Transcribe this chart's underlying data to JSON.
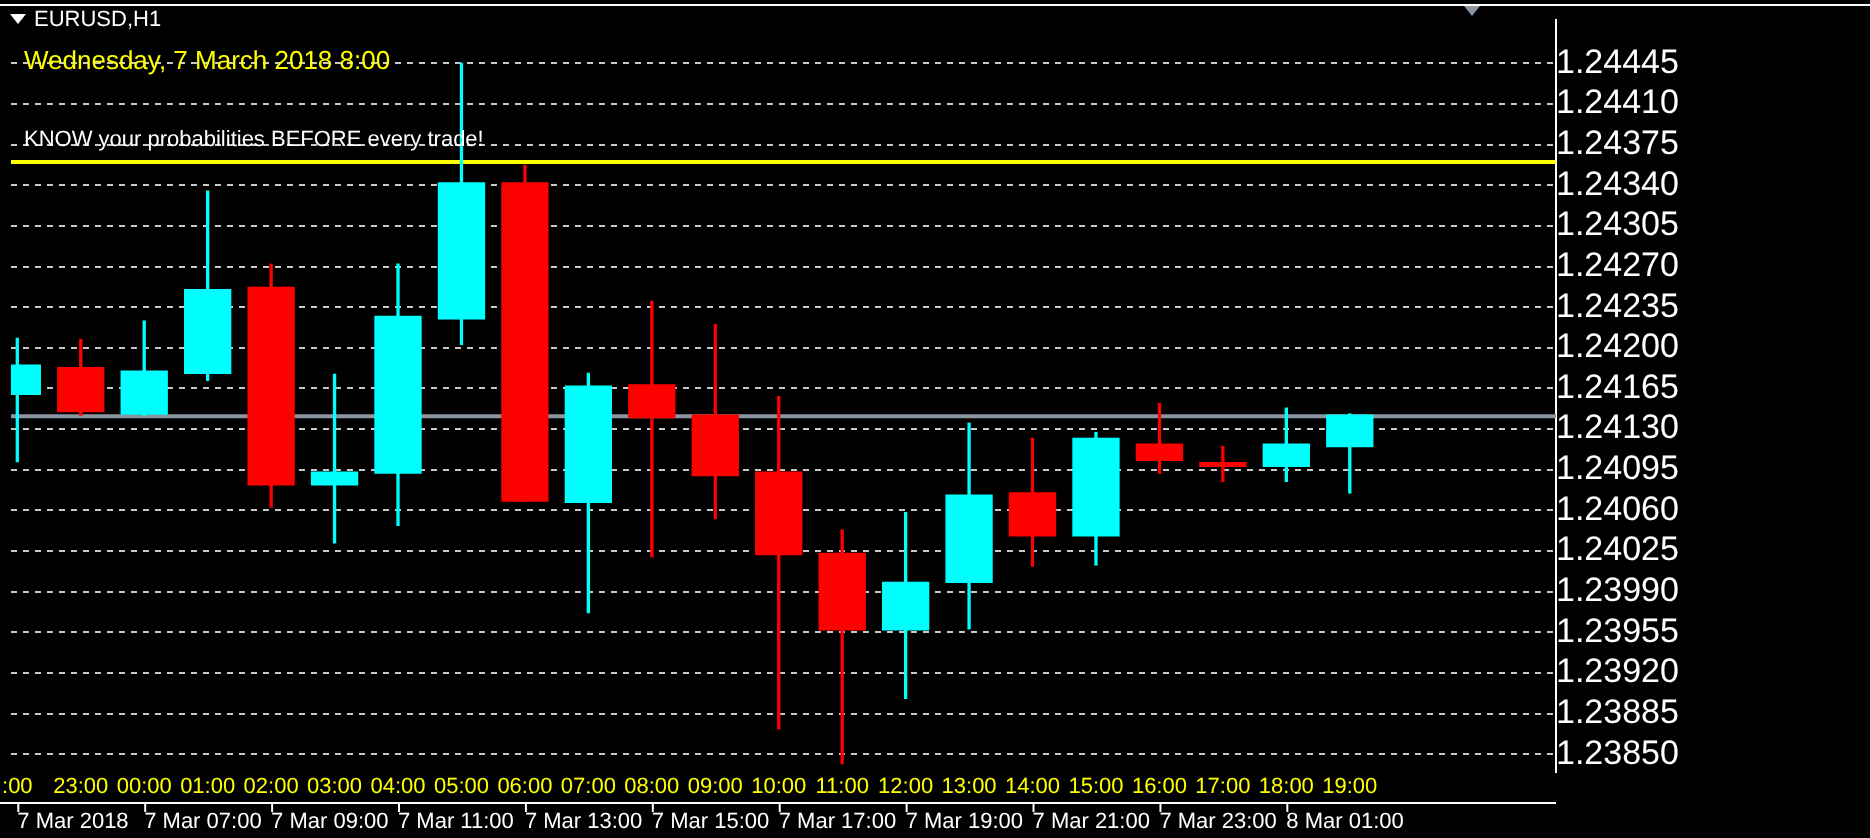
{
  "chart_data": {
    "type": "candlestick",
    "title": "EURUSD,H1",
    "categories": [
      ":00",
      "23:00",
      "00:00",
      "01:00",
      "02:00",
      "03:00",
      "04:00",
      "05:00",
      "06:00",
      "07:00",
      "08:00",
      "09:00",
      "10:00",
      "11:00",
      "12:00",
      "13:00",
      "14:00",
      "15:00",
      "16:00",
      "17:00",
      "18:00",
      "19:00"
    ],
    "ohlc": [
      [
        1.2416,
        1.24208,
        1.24102,
        1.24185
      ],
      [
        1.24183,
        1.24207,
        1.24142,
        1.24145
      ],
      [
        1.24143,
        1.24223,
        1.24142,
        1.2418
      ],
      [
        1.24178,
        1.24335,
        1.24172,
        1.2425
      ],
      [
        1.24252,
        1.24272,
        1.24063,
        1.24082
      ],
      [
        1.24082,
        1.24177,
        1.24032,
        1.24093
      ],
      [
        1.24092,
        1.24272,
        1.24047,
        1.24227
      ],
      [
        1.24225,
        1.24445,
        1.24203,
        1.24342
      ],
      [
        1.24342,
        1.24357,
        1.24068,
        1.24068
      ],
      [
        1.24067,
        1.24178,
        1.23972,
        1.24167
      ],
      [
        1.24168,
        1.2424,
        1.2402,
        1.2414
      ],
      [
        1.24142,
        1.2422,
        1.24053,
        1.2409
      ],
      [
        1.24093,
        1.24158,
        1.23872,
        1.24022
      ],
      [
        1.24023,
        1.24043,
        1.23842,
        1.23957
      ],
      [
        1.23957,
        1.24058,
        1.23898,
        1.23998
      ],
      [
        1.23998,
        1.24135,
        1.23958,
        1.24073
      ],
      [
        1.24075,
        1.24122,
        1.24012,
        1.24038
      ],
      [
        1.24038,
        1.24127,
        1.24013,
        1.24122
      ],
      [
        1.24117,
        1.24152,
        1.24092,
        1.24103
      ],
      [
        1.24101,
        1.24115,
        1.24085,
        1.24098
      ],
      [
        1.24098,
        1.24148,
        1.24085,
        1.24117
      ],
      [
        1.24115,
        1.24143,
        1.24075,
        1.24142
      ]
    ],
    "colors": [
      "#00ffff",
      "#ff0000",
      "#00ffff",
      "#00ffff",
      "#ff0000",
      "#00ffff",
      "#00ffff",
      "#00ffff",
      "#ff0000",
      "#00ffff",
      "#ff0000",
      "#ff0000",
      "#ff0000",
      "#ff0000",
      "#00ffff",
      "#00ffff",
      "#ff0000",
      "#00ffff",
      "#ff0000",
      "#ff0000",
      "#00ffff",
      "#00ffff"
    ],
    "ylim": [
      1.23835,
      1.24482
    ],
    "yticks": [
      {
        "value": 1.24445,
        "label": "1.24445"
      },
      {
        "value": 1.2441,
        "label": "1.24410"
      },
      {
        "value": 1.24375,
        "label": "1.24375"
      },
      {
        "value": 1.2434,
        "label": "1.24340"
      },
      {
        "value": 1.24305,
        "label": "1.24305"
      },
      {
        "value": 1.2427,
        "label": "1.24270"
      },
      {
        "value": 1.24235,
        "label": "1.24235"
      },
      {
        "value": 1.242,
        "label": "1.24200"
      },
      {
        "value": 1.24165,
        "label": "1.24165"
      },
      {
        "value": 1.2413,
        "label": "1.24130"
      },
      {
        "value": 1.24095,
        "label": "1.24095"
      },
      {
        "value": 1.2406,
        "label": "1.24060"
      },
      {
        "value": 1.24025,
        "label": "1.24025"
      },
      {
        "value": 1.2399,
        "label": "1.23990"
      },
      {
        "value": 1.23955,
        "label": "1.23955"
      },
      {
        "value": 1.2392,
        "label": "1.23920"
      },
      {
        "value": 1.23885,
        "label": "1.23885"
      },
      {
        "value": 1.2385,
        "label": "1.23850"
      }
    ],
    "grid": "y",
    "legend": false,
    "ref_lines": [
      {
        "axis": "y",
        "value": 1.2436,
        "label": null,
        "color": "#ffff00"
      },
      {
        "axis": "y",
        "value": 1.24141,
        "label": null,
        "color": "#8c96a0"
      }
    ],
    "annotations": [
      "Wednesday, 7 March 2018 8:00",
      "KNOW your probabilities BEFORE every trade!",
      "7 Mar 2018",
      "7 Mar 07:00",
      "7 Mar 09:00",
      "7 Mar 11:00",
      "7 Mar 13:00",
      "7 Mar 15:00",
      "7 Mar 17:00",
      "7 Mar 19:00",
      "7 Mar 21:00",
      "7 Mar 23:00",
      "8 Mar 01:00"
    ]
  }
}
